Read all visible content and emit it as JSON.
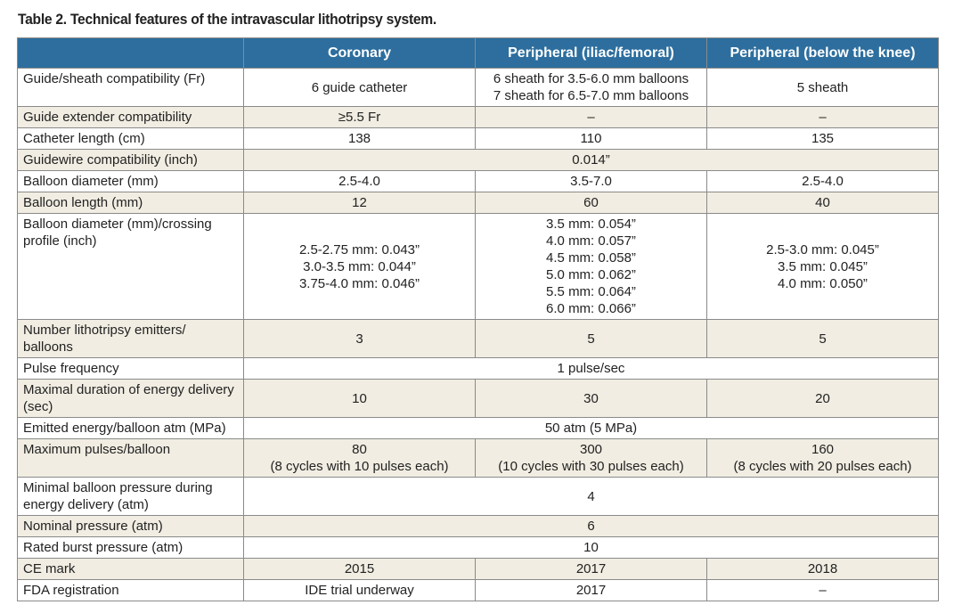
{
  "title": "Table 2. Technical features of the intravascular lithotripsy system.",
  "table": {
    "columns": [
      "Coronary",
      "Peripheral (iliac/femoral)",
      "Peripheral (below the knee)"
    ],
    "rows": [
      {
        "label": "Guide/sheath compatibility (Fr)",
        "cells": [
          [
            "6 guide catheter"
          ],
          [
            "6 sheath for 3.5-6.0 mm balloons",
            "7 sheath for 6.5-7.0 mm balloons"
          ],
          [
            "5 sheath"
          ]
        ]
      },
      {
        "label": "Guide extender compatibility",
        "cells": [
          [
            "≥5.5 Fr"
          ],
          [
            "–"
          ],
          [
            "–"
          ]
        ]
      },
      {
        "label": "Catheter length (cm)",
        "cells": [
          [
            "138"
          ],
          [
            "110"
          ],
          [
            "135"
          ]
        ]
      },
      {
        "label": "Guidewire compatibility (inch)",
        "cells": [
          [
            "0.014”"
          ]
        ]
      },
      {
        "label": "Balloon diameter (mm)",
        "cells": [
          [
            "2.5-4.0"
          ],
          [
            "3.5-7.0"
          ],
          [
            "2.5-4.0"
          ]
        ]
      },
      {
        "label": "Balloon length (mm)",
        "cells": [
          [
            "12"
          ],
          [
            "60"
          ],
          [
            "40"
          ]
        ]
      },
      {
        "label": "Balloon diameter (mm)/crossing profile (inch)",
        "cells": [
          [
            "2.5-2.75 mm: 0.043”",
            "3.0-3.5 mm: 0.044”",
            "3.75-4.0 mm: 0.046”"
          ],
          [
            "3.5 mm: 0.054”",
            "4.0 mm: 0.057”",
            "4.5 mm: 0.058”",
            "5.0 mm: 0.062”",
            "5.5 mm: 0.064”",
            "6.0 mm: 0.066”"
          ],
          [
            "2.5-3.0 mm: 0.045”",
            "3.5 mm: 0.045”",
            "4.0 mm: 0.050”"
          ]
        ]
      },
      {
        "label": "Number lithotripsy emitters/ balloons",
        "cells": [
          [
            "3"
          ],
          [
            "5"
          ],
          [
            "5"
          ]
        ]
      },
      {
        "label": "Pulse frequency",
        "cells": [
          [
            "1 pulse/sec"
          ]
        ]
      },
      {
        "label": "Maximal duration of energy delivery (sec)",
        "cells": [
          [
            "10"
          ],
          [
            "30"
          ],
          [
            "20"
          ]
        ]
      },
      {
        "label": "Emitted energy/balloon atm (MPa)",
        "cells": [
          [
            "50 atm (5 MPa)"
          ]
        ]
      },
      {
        "label": "Maximum pulses/balloon",
        "cells": [
          [
            "80",
            "(8 cycles with 10 pulses each)"
          ],
          [
            "300",
            "(10 cycles with 30 pulses each)"
          ],
          [
            "160",
            "(8 cycles with 20 pulses each)"
          ]
        ]
      },
      {
        "label": "Minimal balloon pressure during energy delivery (atm)",
        "cells": [
          [
            "4"
          ]
        ]
      },
      {
        "label": "Nominal pressure (atm)",
        "cells": [
          [
            "6"
          ]
        ]
      },
      {
        "label": "Rated burst pressure (atm)",
        "cells": [
          [
            "10"
          ]
        ]
      },
      {
        "label": "CE mark",
        "cells": [
          [
            "2015"
          ],
          [
            "2017"
          ],
          [
            "2018"
          ]
        ]
      },
      {
        "label": "FDA registration",
        "cells": [
          [
            "IDE trial underway"
          ],
          [
            "2017"
          ],
          [
            "–"
          ]
        ]
      }
    ]
  }
}
